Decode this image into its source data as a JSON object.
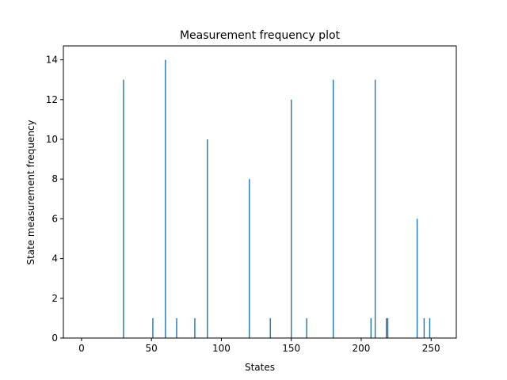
{
  "chart_data": {
    "type": "bar",
    "title": "Measurement frequency plot",
    "xlabel": "States",
    "ylabel": "State measurement frequency",
    "xlim": [
      -13,
      268
    ],
    "ylim": [
      0,
      14.7
    ],
    "xticks": [
      0,
      50,
      100,
      150,
      200,
      250
    ],
    "yticks": [
      0,
      2,
      4,
      6,
      8,
      10,
      12,
      14
    ],
    "grid": false,
    "color": "#1f77b4",
    "bars": [
      {
        "x": 30,
        "y": 13
      },
      {
        "x": 51,
        "y": 1
      },
      {
        "x": 60,
        "y": 14
      },
      {
        "x": 68,
        "y": 1
      },
      {
        "x": 81,
        "y": 1
      },
      {
        "x": 90,
        "y": 10
      },
      {
        "x": 120,
        "y": 8
      },
      {
        "x": 135,
        "y": 1
      },
      {
        "x": 150,
        "y": 12
      },
      {
        "x": 161,
        "y": 1
      },
      {
        "x": 180,
        "y": 13
      },
      {
        "x": 207,
        "y": 1
      },
      {
        "x": 210,
        "y": 13
      },
      {
        "x": 218,
        "y": 1
      },
      {
        "x": 219,
        "y": 1
      },
      {
        "x": 240,
        "y": 6
      },
      {
        "x": 245,
        "y": 1
      },
      {
        "x": 249,
        "y": 1
      }
    ]
  }
}
